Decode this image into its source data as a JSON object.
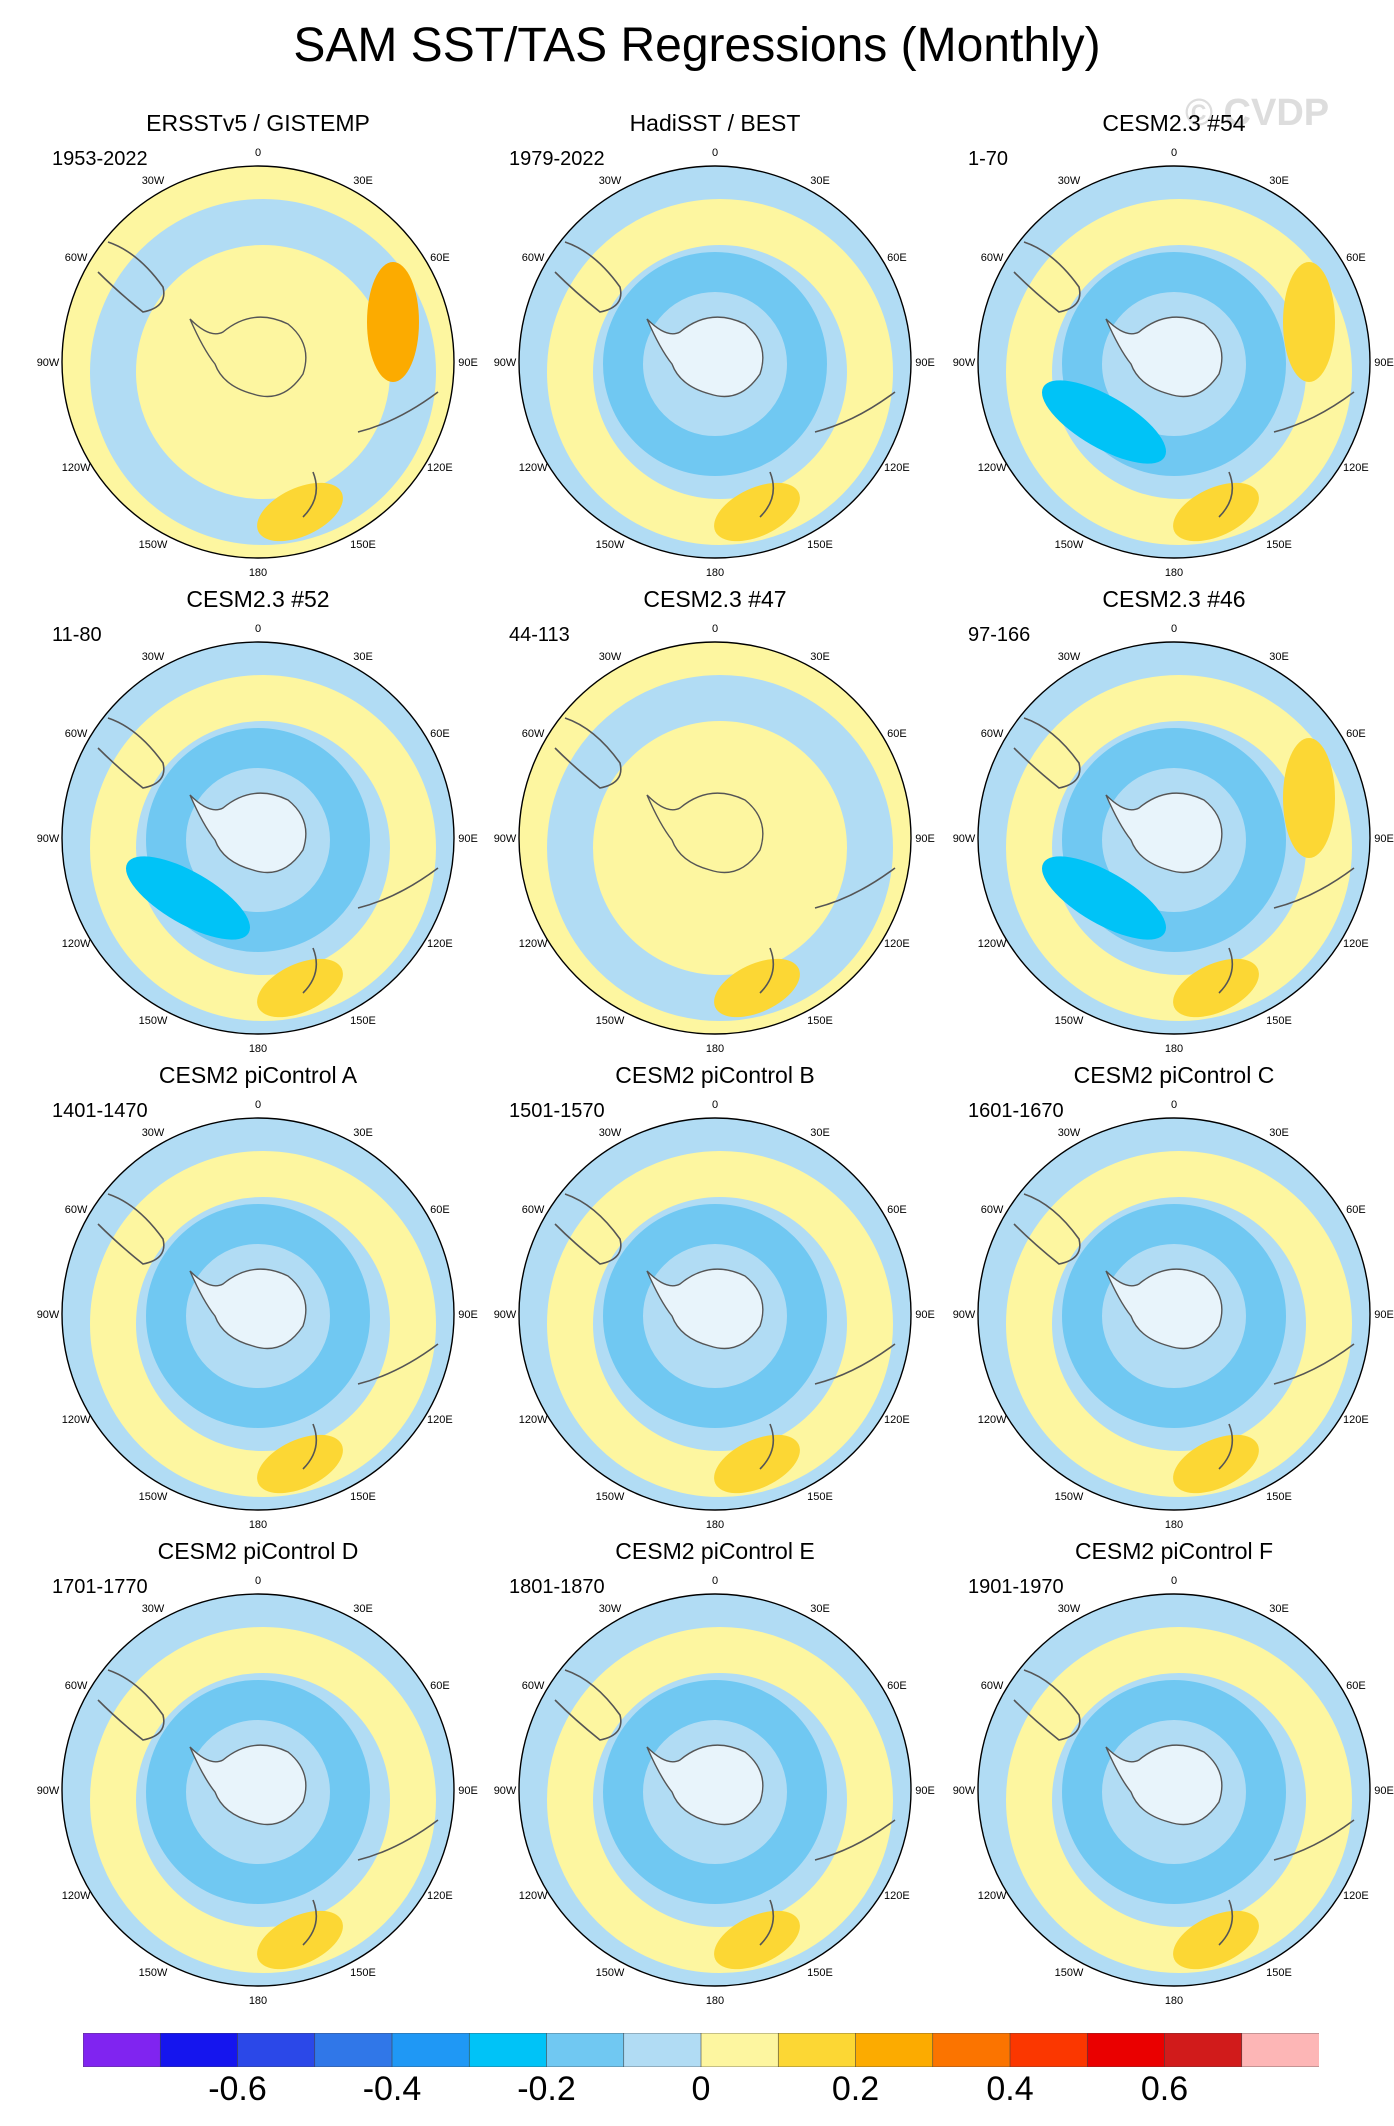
{
  "title": "SAM SST/TAS Regressions (Monthly)",
  "watermark": "© CVDP",
  "longitude_labels": [
    "0",
    "30E",
    "60E",
    "90E",
    "120E",
    "150E",
    "180",
    "150W",
    "120W",
    "90W",
    "60W",
    "30W"
  ],
  "colorbar": {
    "colors": [
      "#8024f0",
      "#1515ee",
      "#2b48e8",
      "#3077e8",
      "#1f98f5",
      "#00c3f7",
      "#70c8f2",
      "#b1dcf4",
      "#fdf6a0",
      "#fcd734",
      "#fcab00",
      "#fb7400",
      "#fb3700",
      "#ea0000",
      "#d11b1b",
      "#fdb6b6"
    ],
    "tick_labels": [
      "-0.6",
      "-0.4",
      "-0.2",
      "0",
      "0.2",
      "0.4",
      "0.6"
    ]
  },
  "chart_data": [
    {
      "type": "heatmap",
      "title": "ERSSTv5 / GISTEMP",
      "years": "1953-2022",
      "dominant_sign": "positive"
    },
    {
      "type": "heatmap",
      "title": "HadiSST / BEST",
      "years": "1979-2022",
      "dominant_sign": "negative"
    },
    {
      "type": "heatmap",
      "title": "CESM2.3 #54",
      "years": "1-70",
      "dominant_sign": "negative"
    },
    {
      "type": "heatmap",
      "title": "CESM2.3 #52",
      "years": "11-80",
      "dominant_sign": "negative"
    },
    {
      "type": "heatmap",
      "title": "CESM2.3 #47",
      "years": "44-113",
      "dominant_sign": "positive"
    },
    {
      "type": "heatmap",
      "title": "CESM2.3 #46",
      "years": "97-166",
      "dominant_sign": "negative"
    },
    {
      "type": "heatmap",
      "title": "CESM2 piControl A",
      "years": "1401-1470",
      "dominant_sign": "negative"
    },
    {
      "type": "heatmap",
      "title": "CESM2 piControl B",
      "years": "1501-1570",
      "dominant_sign": "negative"
    },
    {
      "type": "heatmap",
      "title": "CESM2 piControl C",
      "years": "1601-1670",
      "dominant_sign": "negative"
    },
    {
      "type": "heatmap",
      "title": "CESM2 piControl D",
      "years": "1701-1770",
      "dominant_sign": "negative"
    },
    {
      "type": "heatmap",
      "title": "CESM2 piControl E",
      "years": "1801-1870",
      "dominant_sign": "negative"
    },
    {
      "type": "heatmap",
      "title": "CESM2 piControl F",
      "years": "1901-1970",
      "dominant_sign": "negative"
    }
  ]
}
